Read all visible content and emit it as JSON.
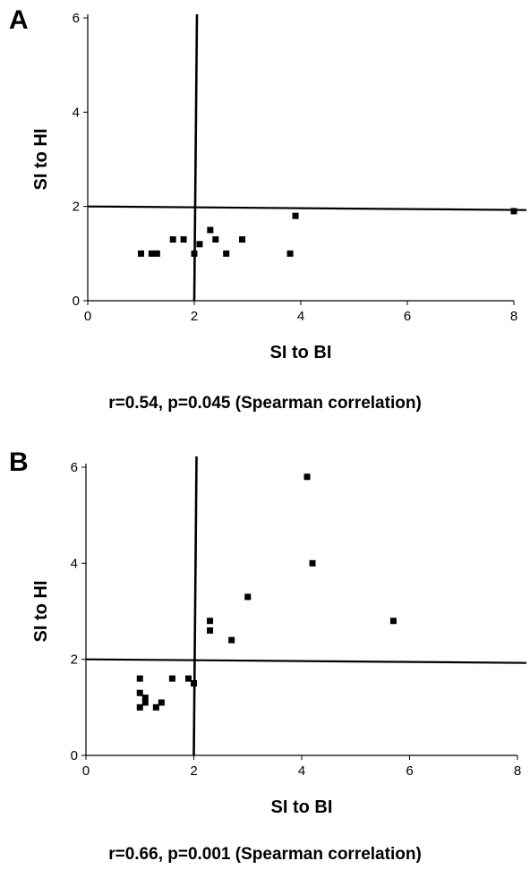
{
  "chart_data": [
    {
      "type": "scatter",
      "panel_label": "A",
      "xlabel": "SI to BI",
      "ylabel": "SI to HI",
      "xlim": [
        0,
        8
      ],
      "ylim": [
        0,
        6
      ],
      "x_ticks": [
        0,
        2,
        4,
        6,
        8
      ],
      "y_ticks": [
        0,
        2,
        4,
        6
      ],
      "reference_lines": {
        "vertical_x": 2,
        "horizontal_y": 2
      },
      "caption": "r=0.54, p=0.045 (Spearman correlation)",
      "series": [
        {
          "points": [
            [
              1.0,
              1.0
            ],
            [
              1.2,
              1.0
            ],
            [
              1.3,
              1.0
            ],
            [
              1.6,
              1.3
            ],
            [
              1.8,
              1.3
            ],
            [
              2.0,
              1.0
            ],
            [
              2.1,
              1.2
            ],
            [
              2.3,
              1.5
            ],
            [
              2.4,
              1.3
            ],
            [
              2.6,
              1.0
            ],
            [
              2.9,
              1.3
            ],
            [
              3.8,
              1.0
            ],
            [
              3.9,
              1.8
            ],
            [
              8.0,
              1.9
            ]
          ]
        }
      ],
      "marker_color": "#000000"
    },
    {
      "type": "scatter",
      "panel_label": "B",
      "xlabel": "SI to BI",
      "ylabel": "SI to HI",
      "xlim": [
        0,
        8
      ],
      "ylim": [
        0,
        6
      ],
      "x_ticks": [
        0,
        2,
        4,
        6,
        8
      ],
      "y_ticks": [
        0,
        2,
        4,
        6
      ],
      "reference_lines": {
        "vertical_x": 2,
        "horizontal_y": 2
      },
      "caption": "r=0.66, p=0.001 (Spearman correlation)",
      "series": [
        {
          "points": [
            [
              1.0,
              1.6
            ],
            [
              1.0,
              1.3
            ],
            [
              1.0,
              1.0
            ],
            [
              1.1,
              1.2
            ],
            [
              1.1,
              1.1
            ],
            [
              1.3,
              1.0
            ],
            [
              1.4,
              1.1
            ],
            [
              1.6,
              1.6
            ],
            [
              1.9,
              1.6
            ],
            [
              2.0,
              1.5
            ],
            [
              2.3,
              2.8
            ],
            [
              2.3,
              2.6
            ],
            [
              2.7,
              2.4
            ],
            [
              3.0,
              3.3
            ],
            [
              4.1,
              5.8
            ],
            [
              4.2,
              4.0
            ],
            [
              5.7,
              2.8
            ]
          ]
        }
      ],
      "marker_color": "#000000"
    }
  ]
}
